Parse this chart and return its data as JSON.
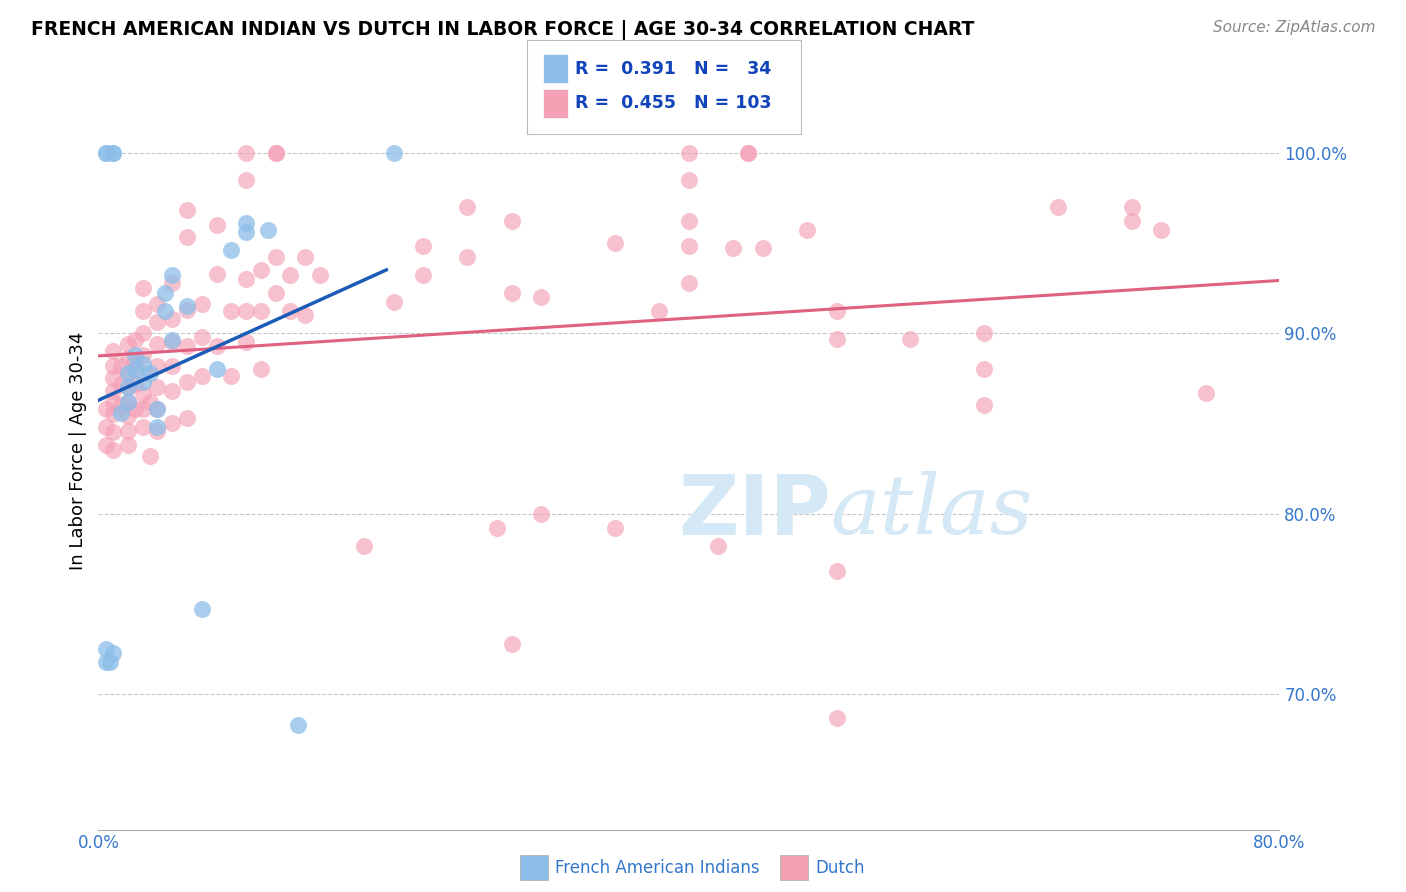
{
  "title": "FRENCH AMERICAN INDIAN VS DUTCH IN LABOR FORCE | AGE 30-34 CORRELATION CHART",
  "source": "Source: ZipAtlas.com",
  "ylabel": "In Labor Force | Age 30-34",
  "ylabel_ticks": [
    "70.0%",
    "80.0%",
    "90.0%",
    "100.0%"
  ],
  "ylabel_tick_values": [
    0.7,
    0.8,
    0.9,
    1.0
  ],
  "xmin": 0.0,
  "xmax": 0.8,
  "ymin": 0.625,
  "ymax": 1.045,
  "blue_color": "#8BBDE8",
  "pink_color": "#F4A0B5",
  "blue_line_color": "#1A5CB8",
  "pink_line_color": "#E06080",
  "watermark_color": "#D5E8F5",
  "blue_scatter": [
    [
      0.005,
      0.718
    ],
    [
      0.005,
      0.725
    ],
    [
      0.008,
      0.718
    ],
    [
      0.01,
      0.723
    ],
    [
      0.005,
      1.0
    ],
    [
      0.005,
      1.0
    ],
    [
      0.01,
      1.0
    ],
    [
      0.01,
      1.0
    ],
    [
      0.015,
      0.856
    ],
    [
      0.02,
      0.862
    ],
    [
      0.02,
      0.87
    ],
    [
      0.02,
      0.878
    ],
    [
      0.025,
      0.88
    ],
    [
      0.025,
      0.888
    ],
    [
      0.03,
      0.873
    ],
    [
      0.03,
      0.883
    ],
    [
      0.035,
      0.878
    ],
    [
      0.04,
      0.848
    ],
    [
      0.04,
      0.858
    ],
    [
      0.045,
      0.912
    ],
    [
      0.045,
      0.922
    ],
    [
      0.05,
      0.896
    ],
    [
      0.05,
      0.932
    ],
    [
      0.06,
      0.915
    ],
    [
      0.07,
      0.747
    ],
    [
      0.08,
      0.88
    ],
    [
      0.09,
      0.946
    ],
    [
      0.1,
      0.956
    ],
    [
      0.1,
      0.961
    ],
    [
      0.115,
      0.957
    ],
    [
      0.135,
      0.683
    ],
    [
      0.2,
      1.0
    ]
  ],
  "pink_scatter": [
    [
      0.005,
      0.838
    ],
    [
      0.005,
      0.848
    ],
    [
      0.005,
      0.858
    ],
    [
      0.01,
      0.835
    ],
    [
      0.01,
      0.845
    ],
    [
      0.01,
      0.855
    ],
    [
      0.01,
      0.862
    ],
    [
      0.01,
      0.868
    ],
    [
      0.01,
      0.875
    ],
    [
      0.01,
      0.882
    ],
    [
      0.01,
      0.89
    ],
    [
      0.015,
      0.86
    ],
    [
      0.015,
      0.872
    ],
    [
      0.015,
      0.882
    ],
    [
      0.02,
      0.838
    ],
    [
      0.02,
      0.846
    ],
    [
      0.02,
      0.854
    ],
    [
      0.02,
      0.862
    ],
    [
      0.02,
      0.87
    ],
    [
      0.02,
      0.878
    ],
    [
      0.02,
      0.886
    ],
    [
      0.02,
      0.894
    ],
    [
      0.025,
      0.858
    ],
    [
      0.025,
      0.872
    ],
    [
      0.025,
      0.885
    ],
    [
      0.025,
      0.896
    ],
    [
      0.03,
      0.848
    ],
    [
      0.03,
      0.858
    ],
    [
      0.03,
      0.866
    ],
    [
      0.03,
      0.878
    ],
    [
      0.03,
      0.888
    ],
    [
      0.03,
      0.9
    ],
    [
      0.03,
      0.912
    ],
    [
      0.03,
      0.925
    ],
    [
      0.035,
      0.832
    ],
    [
      0.035,
      0.862
    ],
    [
      0.04,
      0.846
    ],
    [
      0.04,
      0.858
    ],
    [
      0.04,
      0.87
    ],
    [
      0.04,
      0.882
    ],
    [
      0.04,
      0.894
    ],
    [
      0.04,
      0.906
    ],
    [
      0.04,
      0.916
    ],
    [
      0.05,
      0.85
    ],
    [
      0.05,
      0.868
    ],
    [
      0.05,
      0.882
    ],
    [
      0.05,
      0.895
    ],
    [
      0.05,
      0.908
    ],
    [
      0.05,
      0.928
    ],
    [
      0.06,
      0.853
    ],
    [
      0.06,
      0.873
    ],
    [
      0.06,
      0.893
    ],
    [
      0.06,
      0.913
    ],
    [
      0.06,
      0.953
    ],
    [
      0.06,
      0.968
    ],
    [
      0.07,
      0.876
    ],
    [
      0.07,
      0.898
    ],
    [
      0.07,
      0.916
    ],
    [
      0.08,
      0.893
    ],
    [
      0.08,
      0.933
    ],
    [
      0.08,
      0.96
    ],
    [
      0.09,
      0.876
    ],
    [
      0.09,
      0.912
    ],
    [
      0.1,
      0.895
    ],
    [
      0.1,
      0.912
    ],
    [
      0.1,
      0.93
    ],
    [
      0.1,
      0.985
    ],
    [
      0.1,
      1.0
    ],
    [
      0.11,
      0.88
    ],
    [
      0.11,
      0.912
    ],
    [
      0.11,
      0.935
    ],
    [
      0.12,
      0.922
    ],
    [
      0.12,
      0.942
    ],
    [
      0.12,
      1.0
    ],
    [
      0.12,
      1.0
    ],
    [
      0.13,
      0.912
    ],
    [
      0.13,
      0.932
    ],
    [
      0.14,
      0.91
    ],
    [
      0.14,
      0.942
    ],
    [
      0.15,
      0.932
    ],
    [
      0.18,
      0.782
    ],
    [
      0.2,
      0.917
    ],
    [
      0.22,
      0.932
    ],
    [
      0.22,
      0.948
    ],
    [
      0.25,
      0.942
    ],
    [
      0.25,
      0.97
    ],
    [
      0.27,
      0.792
    ],
    [
      0.28,
      0.728
    ],
    [
      0.28,
      0.922
    ],
    [
      0.28,
      0.962
    ],
    [
      0.3,
      0.8
    ],
    [
      0.3,
      0.92
    ],
    [
      0.35,
      0.792
    ],
    [
      0.35,
      0.95
    ],
    [
      0.38,
      0.912
    ],
    [
      0.4,
      0.928
    ],
    [
      0.4,
      0.948
    ],
    [
      0.4,
      0.962
    ],
    [
      0.4,
      0.985
    ],
    [
      0.4,
      1.0
    ],
    [
      0.42,
      0.782
    ],
    [
      0.43,
      0.947
    ],
    [
      0.44,
      1.0
    ],
    [
      0.44,
      1.0
    ],
    [
      0.45,
      0.947
    ],
    [
      0.48,
      0.957
    ],
    [
      0.5,
      0.687
    ],
    [
      0.5,
      0.768
    ],
    [
      0.5,
      0.897
    ],
    [
      0.5,
      0.912
    ],
    [
      0.55,
      0.897
    ],
    [
      0.6,
      0.86
    ],
    [
      0.6,
      0.88
    ],
    [
      0.6,
      0.9
    ],
    [
      0.65,
      0.97
    ],
    [
      0.7,
      0.962
    ],
    [
      0.7,
      0.97
    ],
    [
      0.72,
      0.957
    ],
    [
      0.75,
      0.867
    ]
  ]
}
